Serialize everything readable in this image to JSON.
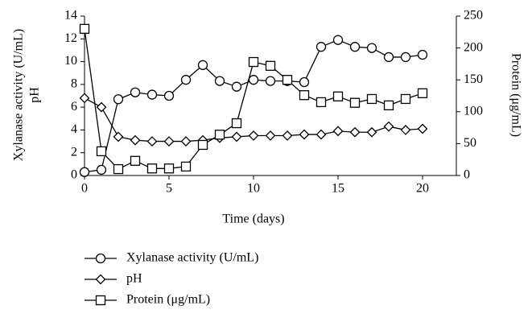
{
  "chart_data": {
    "type": "line",
    "xlabel": "Time (days)",
    "ylabel": [
      "Xylanase activity (U/mL)",
      "pH"
    ],
    "y2label": "Protein (μg/mL)",
    "x": [
      0,
      1,
      2,
      3,
      4,
      5,
      6,
      7,
      8,
      9,
      10,
      11,
      12,
      13,
      14,
      15,
      16,
      17,
      18,
      19,
      20
    ],
    "xlim": [
      0,
      22
    ],
    "xticks": [
      0,
      5,
      10,
      15,
      20
    ],
    "ylim": [
      0,
      14
    ],
    "yticks": [
      0,
      2,
      4,
      6,
      8,
      10,
      12,
      14
    ],
    "y2lim": [
      0,
      250
    ],
    "y2ticks": [
      0,
      50,
      100,
      150,
      200,
      250
    ],
    "series": [
      {
        "name": "Xylanase activity (U/mL)",
        "color": "#000000",
        "marker": "circle",
        "values": [
          0.3,
          0.5,
          6.7,
          7.3,
          7.1,
          7.0,
          8.4,
          9.7,
          8.3,
          7.8,
          8.4,
          8.3,
          8.3,
          8.2,
          11.3,
          11.9,
          11.3,
          11.2,
          10.4,
          10.4,
          10.6
        ]
      },
      {
        "name": "pH",
        "color": "#000000",
        "marker": "diamond",
        "values": [
          6.8,
          6.0,
          3.4,
          3.1,
          3.0,
          3.0,
          3.0,
          3.1,
          3.3,
          3.4,
          3.5,
          3.5,
          3.5,
          3.6,
          3.6,
          3.9,
          3.8,
          3.8,
          4.3,
          4.0,
          4.1
        ]
      },
      {
        "name": "Protein (μg/mL)",
        "color": "#000000",
        "marker": "square",
        "axis": "y2",
        "values": [
          230,
          38,
          10,
          23,
          11,
          11,
          14,
          48,
          64,
          82,
          178,
          172,
          150,
          126,
          115,
          124,
          114,
          120,
          110,
          120,
          129
        ]
      }
    ]
  }
}
